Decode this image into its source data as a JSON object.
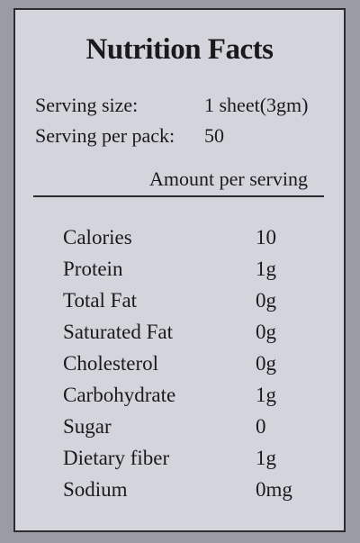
{
  "label": {
    "title": "Nutrition Facts",
    "serving_size_label": "Serving size:",
    "serving_size_value": "1   sheet(3gm)",
    "servings_per_pack_label": "Serving per pack:",
    "servings_per_pack_value": "50",
    "amount_per_serving": "Amount per serving",
    "nutrients": [
      {
        "name": "Calories",
        "value": "10"
      },
      {
        "name": "Protein",
        "value": "1g"
      },
      {
        "name": "Total Fat",
        "value": "0g"
      },
      {
        "name": "Saturated Fat",
        "value": "0g"
      },
      {
        "name": "Cholesterol",
        "value": "0g"
      },
      {
        "name": "Carbohydrate",
        "value": "1g"
      },
      {
        "name": "Sugar",
        "value": "0"
      },
      {
        "name": "Dietary fiber",
        "value": "1g"
      },
      {
        "name": "Sodium",
        "value": "0mg"
      }
    ]
  }
}
